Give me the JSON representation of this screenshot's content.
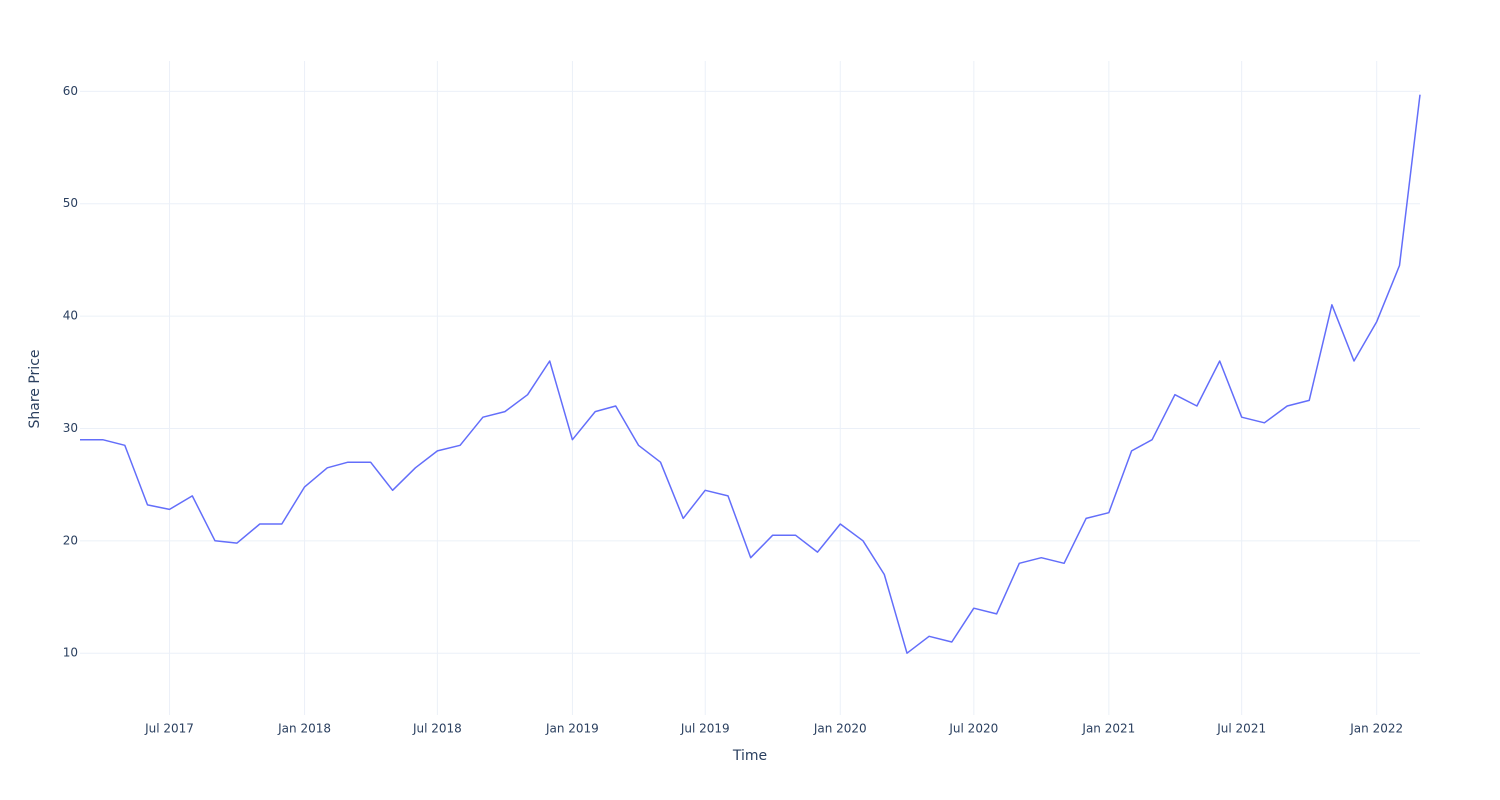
{
  "chart_data": {
    "type": "line",
    "xlabel": "Time",
    "ylabel": "Share Price",
    "x": [
      "2017-03",
      "2017-04",
      "2017-05",
      "2017-06",
      "2017-07",
      "2017-08",
      "2017-09",
      "2017-10",
      "2017-11",
      "2017-12",
      "2018-01",
      "2018-02",
      "2018-03",
      "2018-04",
      "2018-05",
      "2018-06",
      "2018-07",
      "2018-08",
      "2018-09",
      "2018-10",
      "2018-11",
      "2018-12",
      "2019-01",
      "2019-02",
      "2019-03",
      "2019-04",
      "2019-05",
      "2019-06",
      "2019-07",
      "2019-08",
      "2019-09",
      "2019-10",
      "2019-11",
      "2019-12",
      "2020-01",
      "2020-02",
      "2020-03",
      "2020-04",
      "2020-05",
      "2020-06",
      "2020-07",
      "2020-08",
      "2020-09",
      "2020-10",
      "2020-11",
      "2020-12",
      "2021-01",
      "2021-02",
      "2021-03",
      "2021-04",
      "2021-05",
      "2021-06",
      "2021-07",
      "2021-08",
      "2021-09",
      "2021-10",
      "2021-11",
      "2021-12",
      "2022-01",
      "2022-02",
      "2022-03"
    ],
    "series": [
      {
        "name": "Share Price",
        "color": "#636efa",
        "values": [
          29,
          29,
          28.5,
          23.2,
          22.8,
          24,
          20,
          19.8,
          21.5,
          21.5,
          24.8,
          26.5,
          27,
          27,
          24.5,
          26.5,
          28,
          28.5,
          31,
          31.5,
          33,
          36,
          29,
          31.5,
          32,
          28.5,
          27,
          22,
          24.5,
          24,
          18.5,
          20.5,
          20.5,
          19,
          21.5,
          20,
          17,
          10,
          11.5,
          11,
          14,
          13.5,
          18,
          18.5,
          18,
          22,
          22.5,
          28,
          29,
          33,
          32,
          36,
          31,
          30.5,
          32,
          32.5,
          41,
          36,
          39.5,
          44.5,
          59.7
        ]
      }
    ],
    "xlim": [
      "2017-03",
      "2022-03"
    ],
    "xticks": [
      {
        "value": "2017-07",
        "label": "Jul 2017"
      },
      {
        "value": "2018-01",
        "label": "Jan 2018"
      },
      {
        "value": "2018-07",
        "label": "Jul 2018"
      },
      {
        "value": "2019-01",
        "label": "Jan 2019"
      },
      {
        "value": "2019-07",
        "label": "Jul 2019"
      },
      {
        "value": "2020-01",
        "label": "Jan 2020"
      },
      {
        "value": "2020-07",
        "label": "Jul 2020"
      },
      {
        "value": "2021-01",
        "label": "Jan 2021"
      },
      {
        "value": "2021-07",
        "label": "Jul 2021"
      },
      {
        "value": "2022-01",
        "label": "Jan 2022"
      }
    ],
    "ylim": [
      4.5,
      62.7
    ],
    "yticks": [
      10,
      20,
      30,
      40,
      50,
      60
    ],
    "grid": true
  }
}
